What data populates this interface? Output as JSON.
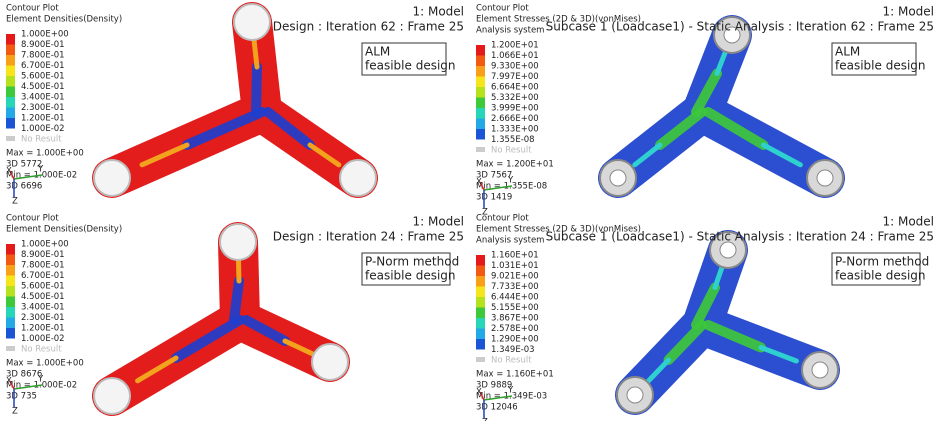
{
  "panels": [
    {
      "header": [
        "Contour Plot",
        "Element Densities(Density)"
      ],
      "legend": [
        "1.000E+00",
        "8.900E-01",
        "7.800E-01",
        "6.700E-01",
        "5.600E-01",
        "4.500E-01",
        "3.400E-01",
        "2.300E-01",
        "1.200E-01",
        "1.000E-02"
      ],
      "no_result": "No Result",
      "max": "Max = 1.000E+00",
      "max_id": "3D 5772",
      "min": "Min = 1.000E-02",
      "min_id": "3D 6696",
      "model": "1: Model",
      "frame": "Design : Iteration 62 : Frame 25",
      "method": [
        "ALM",
        "feasible design"
      ]
    },
    {
      "header": [
        "Contour Plot",
        "Element Stresses (2D & 3D)(vonMises)",
        "Analysis system"
      ],
      "legend": [
        "1.200E+01",
        "1.066E+01",
        "9.330E+00",
        "7.997E+00",
        "6.664E+00",
        "5.332E+00",
        "3.999E+00",
        "2.666E+00",
        "1.333E+00",
        "1.355E-08"
      ],
      "no_result": "No Result",
      "max": "Max = 1.200E+01",
      "max_id": "3D 7567",
      "min": "Min = 1.355E-08",
      "min_id": "3D 1419",
      "model": "1: Model",
      "frame": "Subcase 1 (Loadcase1) - Static Analysis : Iteration 62 : Frame 25",
      "method": [
        "ALM",
        "feasible design"
      ]
    },
    {
      "header": [
        "Contour Plot",
        "Element Densities(Density)"
      ],
      "legend": [
        "1.000E+00",
        "8.900E-01",
        "7.800E-01",
        "6.700E-01",
        "5.600E-01",
        "4.500E-01",
        "3.400E-01",
        "2.300E-01",
        "1.200E-01",
        "1.000E-02"
      ],
      "no_result": "No Result",
      "max": "Max = 1.000E+00",
      "max_id": "3D 8676",
      "min": "Min = 1.000E-02",
      "min_id": "3D 735",
      "model": "1: Model",
      "frame": "Design : Iteration 24 : Frame 25",
      "method": [
        "P-Norm method",
        "feasible design"
      ]
    },
    {
      "header": [
        "Contour Plot",
        "Element Stresses (2D & 3D)(vonMises)",
        "Analysis system"
      ],
      "legend": [
        "1.160E+01",
        "1.031E+01",
        "9.021E+00",
        "7.733E+00",
        "6.444E+00",
        "5.155E+00",
        "3.867E+00",
        "2.578E+00",
        "1.290E+00",
        "1.349E-03"
      ],
      "no_result": "No Result",
      "max": "Max = 1.160E+01",
      "max_id": "3D 9889",
      "min": "Min = 1.349E-03",
      "min_id": "3D 12046",
      "model": "1: Model",
      "frame": "Subcase 1 (Loadcase1) - Static Analysis : Iteration 24 : Frame 25",
      "method": [
        "P-Norm method",
        "feasible design"
      ]
    }
  ],
  "axis_labels": [
    "X",
    "Y",
    "Z"
  ]
}
